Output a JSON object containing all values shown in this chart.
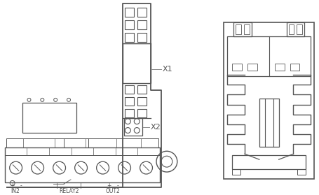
{
  "bg_color": "#ffffff",
  "line_color": "#555555",
  "line_width": 1.0,
  "label_x1": "X1",
  "label_x2": "X2",
  "label_in2": "IN2",
  "label_relay2": "RELAY2",
  "label_out2": "OUT2"
}
